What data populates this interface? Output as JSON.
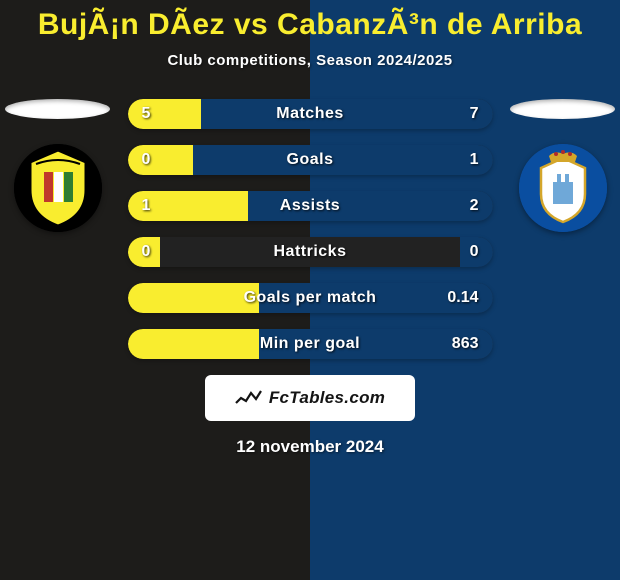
{
  "title": "BujÃ¡n DÃez vs CabanzÃ³n de Arriba",
  "subtitle": "Club competitions, Season 2024/2025",
  "date": "12 november 2024",
  "colors": {
    "bg_left": "#1d1c1a",
    "bg_right": "#0d3b6b",
    "title_text": "#f9ed2f",
    "ellipse_left": "#ffffff",
    "ellipse_right": "#ffffff",
    "track": "#222222",
    "fill_left": "#f9ed2f",
    "fill_right": "#0d3b6b",
    "footer_bg": "#ffffff",
    "footer_text": "#141414"
  },
  "crest_left": {
    "bg": "#f9ed2f",
    "accent1": "#000000",
    "accent2": "#c0392b",
    "accent3": "#2e7d32"
  },
  "crest_right": {
    "bg": "#0a4ea0",
    "accent1": "#d4a62a",
    "accent2": "#ffffff",
    "accent3": "#6fa8d8"
  },
  "stats": [
    {
      "label": "Matches",
      "left_val": "5",
      "right_val": "7",
      "left_pct": 20,
      "right_pct": 80
    },
    {
      "label": "Goals",
      "left_val": "0",
      "right_val": "1",
      "left_pct": 18,
      "right_pct": 82
    },
    {
      "label": "Assists",
      "left_val": "1",
      "right_val": "2",
      "left_pct": 33,
      "right_pct": 67
    },
    {
      "label": "Hattricks",
      "left_val": "0",
      "right_val": "0",
      "left_pct": 9,
      "right_pct": 9
    },
    {
      "label": "Goals per match",
      "left_val": "",
      "right_val": "0.14",
      "left_pct": 36,
      "right_pct": 64
    },
    {
      "label": "Min per goal",
      "left_val": "",
      "right_val": "863",
      "left_pct": 36,
      "right_pct": 64
    }
  ],
  "footer_label": "FcTables.com"
}
